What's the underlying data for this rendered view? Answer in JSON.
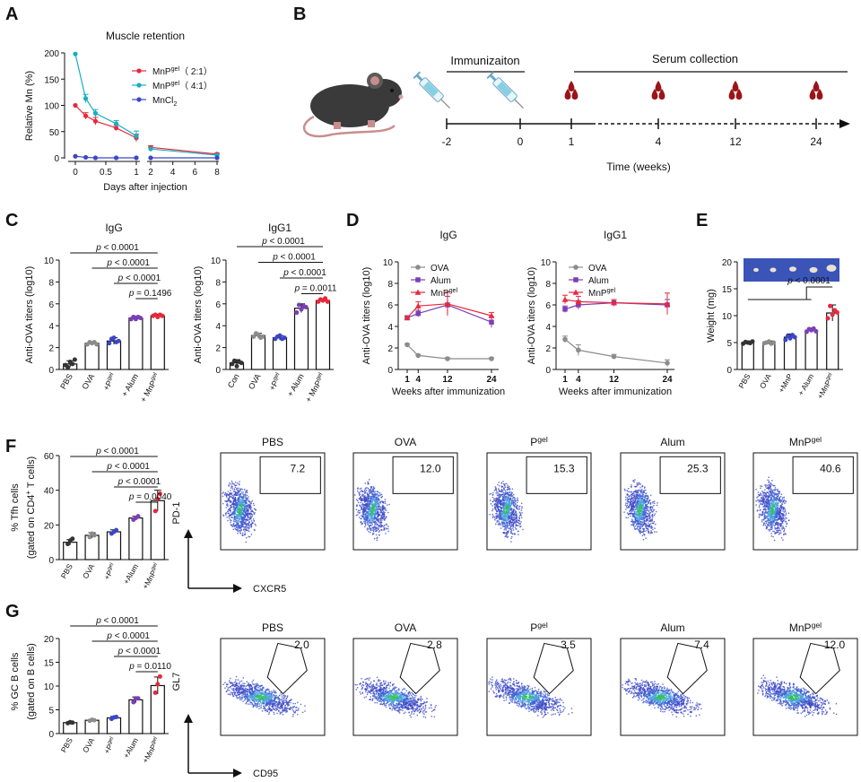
{
  "panel_labels": [
    "A",
    "B",
    "C",
    "D",
    "E",
    "F",
    "G"
  ],
  "colors": {
    "pbs": "#333333",
    "ova": "#8c8c8c",
    "pgel": "#3b47c6",
    "alum": "#7b3fb5",
    "mnp": "#e8283c",
    "cyan": "#17aec3",
    "blue": "#3b47c6",
    "red": "#e8283c",
    "blood": "#9b1418",
    "mouse": "#3a3a3a",
    "tissue_bg": "#3b54b8"
  },
  "panel_a": {
    "title": "Muscle retention",
    "ylabel": "Relative Mn (%)",
    "xlabel": "Days after injection",
    "yticks": [
      "0",
      "50",
      "100",
      "150",
      "200"
    ],
    "xticks_left": [
      "0",
      "0.5",
      "1"
    ],
    "xticks_right": [
      "2",
      "4",
      "6",
      "8"
    ],
    "legend": [
      {
        "main": "MnP",
        "sup": "gel",
        "tail": "（ 2:1）"
      },
      {
        "main": "MnP",
        "sup": "gel",
        "tail": "（ 4:1）"
      },
      {
        "main": "MnCl",
        "sub": "2",
        "tail": ""
      }
    ]
  },
  "panel_b": {
    "immunization_label": "Immunizaiton",
    "serum_label": "Serum collection",
    "ticks": [
      "-2",
      "0",
      "1",
      "4",
      "12",
      "24"
    ],
    "xlabel": "Time (weeks)"
  },
  "panel_c": {
    "left": {
      "title": "IgG",
      "ylabel": "Anti-OVA titers (log10)",
      "yticks": [
        "0",
        "2",
        "4",
        "6",
        "8",
        "10"
      ],
      "categories": [
        {
          "main": "PBS"
        },
        {
          "main": "OVA"
        },
        {
          "main": "+P",
          "sup": "gel"
        },
        {
          "main": "+ Alum"
        },
        {
          "main": "+ MnP",
          "sup": "gel"
        }
      ],
      "pvalues": [
        {
          "p": "p",
          "rel": " < 0.0001"
        },
        {
          "p": "p",
          "rel": " < 0.0001"
        },
        {
          "p": "p",
          "rel": " < 0.0001"
        },
        {
          "p": "p",
          "rel": " = 0.1496"
        }
      ]
    },
    "right": {
      "title": "IgG1",
      "ylabel": "Anti-OVA titers (log10)",
      "yticks": [
        "0",
        "2",
        "4",
        "6",
        "8",
        "10"
      ],
      "categories": [
        {
          "main": "Con"
        },
        {
          "main": "OVA"
        },
        {
          "main": "+P",
          "sup": "gel"
        },
        {
          "main": "+ Alum"
        },
        {
          "main": "+ MnP",
          "sup": "gel"
        }
      ],
      "pvalues": [
        {
          "p": "p",
          "rel": " < 0.0001"
        },
        {
          "p": "p",
          "rel": " < 0.0001"
        },
        {
          "p": "p",
          "rel": " < 0.0001"
        },
        {
          "p": "p",
          "rel": " = 0.0011"
        }
      ]
    }
  },
  "panel_d": {
    "left_title": "IgG",
    "right_title": "IgG1",
    "ylabel": "Anti-OVA titers (log10)",
    "xlabel": "Weeks after immunization",
    "yticks": [
      "0",
      "2",
      "4",
      "6",
      "8",
      "10"
    ],
    "xticks": [
      "1",
      "4",
      "12",
      "24"
    ],
    "legend": [
      {
        "main": "OVA"
      },
      {
        "main": "Alum"
      },
      {
        "main": "MnP",
        "sup": "gel"
      }
    ]
  },
  "panel_e": {
    "ylabel": "Weight (mg)",
    "yticks": [
      "0",
      "5",
      "10",
      "15",
      "20"
    ],
    "categories": [
      {
        "main": "PBS"
      },
      {
        "main": "OVA"
      },
      {
        "main": "+MnP"
      },
      {
        "main": "+ Alum"
      },
      {
        "main": "+MnP",
        "sup": "gel"
      }
    ],
    "pvalue": {
      "p": "p",
      "rel": " < 0.0001"
    }
  },
  "panel_f": {
    "ylabel1": "% Tfh cells",
    "ylabel2_main": "(gated on CD4",
    "ylabel2_sup": "+",
    "ylabel2_tail": " T cells)",
    "yticks": [
      "0",
      "20",
      "40",
      "60"
    ],
    "categories": [
      {
        "main": "PBS"
      },
      {
        "main": "OVA"
      },
      {
        "main": "+P",
        "sup": "gel"
      },
      {
        "main": "+Alum"
      },
      {
        "main": "+MnP",
        "sup": "gel"
      }
    ],
    "pvalues": [
      {
        "p": "p",
        "rel": " < 0.0001"
      },
      {
        "p": "p",
        "rel": " < 0.0001"
      },
      {
        "p": "p",
        "rel": " < 0.0001"
      },
      {
        "p": "p",
        "rel": " = 0.0040"
      }
    ],
    "flow_titles": [
      {
        "main": "PBS"
      },
      {
        "main": "OVA"
      },
      {
        "main": "P",
        "sup": "gel"
      },
      {
        "main": "Alum"
      },
      {
        "main": "MnP",
        "sup": "gel"
      }
    ],
    "gate_values": [
      "7.2",
      "12.0",
      "15.3",
      "25.3",
      "40.6"
    ],
    "y_axis_label": "PD-1",
    "x_axis_label": "CXCR5"
  },
  "panel_g": {
    "ylabel1": "% GC B cells",
    "ylabel2": "(gated on B cells)",
    "yticks": [
      "0",
      "5",
      "10",
      "15",
      "20"
    ],
    "categories": [
      {
        "main": "PBS"
      },
      {
        "main": "OVA"
      },
      {
        "main": "+P",
        "sup": "gel"
      },
      {
        "main": "+Alum"
      },
      {
        "main": "+MnP",
        "sup": "gel"
      }
    ],
    "pvalues": [
      {
        "p": "p",
        "rel": " < 0.0001"
      },
      {
        "p": "p",
        "rel": " < 0.0001"
      },
      {
        "p": "p",
        "rel": " < 0.0001"
      },
      {
        "p": "p",
        "rel": " = 0.0110"
      }
    ],
    "flow_titles": [
      {
        "main": "PBS"
      },
      {
        "main": "OVA"
      },
      {
        "main": "P",
        "sup": "gel"
      },
      {
        "main": "Alum"
      },
      {
        "main": "MnP",
        "sup": "gel"
      }
    ],
    "gate_values": [
      "2.0",
      "2.8",
      "3.5",
      "7.4",
      "12.0"
    ],
    "y_axis_label": "GL7",
    "x_axis_label": "CD95"
  },
  "chart_data": [
    {
      "id": "A",
      "type": "line",
      "title": "Muscle retention",
      "xlabel": "Days after injection",
      "ylabel": "Relative Mn (%)",
      "ylim": [
        0,
        200
      ],
      "series": [
        {
          "name": "MnPgel (2:1)",
          "x": [
            0,
            0.17,
            0.33,
            0.67,
            1,
            2,
            8
          ],
          "y": [
            100,
            80,
            70,
            57,
            38,
            20,
            7
          ],
          "err": [
            0,
            6,
            7,
            5,
            7,
            3,
            2
          ],
          "color": "#e8283c",
          "marker": "circle"
        },
        {
          "name": "MnPgel (4:1)",
          "x": [
            0,
            0.17,
            0.33,
            0.67,
            1,
            2,
            8
          ],
          "y": [
            198,
            113,
            85,
            65,
            42,
            17,
            5
          ],
          "err": [
            0,
            8,
            7,
            6,
            9,
            3,
            2
          ],
          "color": "#17aec3",
          "marker": "circle"
        },
        {
          "name": "MnCl2",
          "x": [
            0,
            0.17,
            0.33,
            0.67,
            1,
            2,
            8
          ],
          "y": [
            3,
            1,
            0,
            0,
            0,
            0,
            0
          ],
          "err": [
            0,
            0,
            0,
            0,
            0,
            0,
            0
          ],
          "color": "#3b47c6",
          "marker": "circle"
        }
      ]
    },
    {
      "id": "C-IgG",
      "type": "bar",
      "categories": [
        "PBS",
        "OVA",
        "+Pgel",
        "+ Alum",
        "+ MnPgel"
      ],
      "values": [
        0.5,
        2.4,
        2.6,
        4.7,
        4.9
      ],
      "err": [
        0.3,
        0.15,
        0.3,
        0.15,
        0.15
      ],
      "ylim": [
        0,
        10
      ],
      "title": "IgG",
      "points": [
        [
          0.4,
          0.2,
          0.7,
          0.5,
          0.9
        ],
        [
          2.3,
          2.5,
          2.4,
          2.5,
          2.3
        ],
        [
          2.4,
          2.8,
          2.9,
          2.5,
          2.6
        ],
        [
          4.6,
          4.8,
          4.6,
          4.8,
          4.7
        ],
        [
          4.9,
          5.0,
          4.8,
          5.0,
          4.9
        ]
      ]
    },
    {
      "id": "C-IgG1",
      "type": "bar",
      "categories": [
        "Con",
        "OVA",
        "+Pgel",
        "+ Alum",
        "+ MnPgel"
      ],
      "values": [
        0.6,
        3.1,
        2.9,
        5.6,
        6.3
      ],
      "err": [
        0.3,
        0.2,
        0.2,
        0.4,
        0.15
      ],
      "ylim": [
        0,
        10
      ],
      "title": "IgG1",
      "points": [
        [
          0.5,
          0.8,
          0.3,
          0.7,
          0.6
        ],
        [
          3.0,
          3.3,
          3.2,
          2.9,
          3.0
        ],
        [
          2.8,
          3.0,
          3.1,
          2.8,
          2.9
        ],
        [
          5.2,
          5.9,
          5.5,
          5.8,
          5.7
        ],
        [
          6.2,
          6.4,
          6.3,
          6.5,
          6.2
        ]
      ]
    },
    {
      "id": "D-IgG",
      "type": "line",
      "title": "IgG",
      "x": [
        1,
        4,
        12,
        24
      ],
      "xlabel": "Weeks after immunization",
      "ylim": [
        0,
        10
      ],
      "series": [
        {
          "name": "OVA",
          "y": [
            2.3,
            1.3,
            1.0,
            1.0
          ],
          "err": [
            0.1,
            0.1,
            0.1,
            0.1
          ],
          "color": "#8c8c8c",
          "marker": "circle"
        },
        {
          "name": "Alum",
          "y": [
            4.8,
            5.2,
            6.0,
            4.4
          ],
          "err": [
            0.15,
            0.3,
            0.8,
            0.5
          ],
          "color": "#7b3fb5",
          "marker": "square"
        },
        {
          "name": "MnPgel",
          "y": [
            4.8,
            5.9,
            6.1,
            5.0
          ],
          "err": [
            0.2,
            0.4,
            1.1,
            0.3
          ],
          "color": "#e8283c",
          "marker": "triangle"
        }
      ]
    },
    {
      "id": "D-IgG1",
      "type": "line",
      "title": "IgG1",
      "x": [
        1,
        4,
        12,
        24
      ],
      "xlabel": "Weeks after immunization",
      "ylim": [
        0,
        10
      ],
      "series": [
        {
          "name": "OVA",
          "y": [
            2.8,
            1.8,
            1.2,
            0.6
          ],
          "err": [
            0.3,
            0.5,
            0.2,
            0.3
          ],
          "color": "#8c8c8c",
          "marker": "circle"
        },
        {
          "name": "Alum",
          "y": [
            5.6,
            6.0,
            6.2,
            6.0
          ],
          "err": [
            0.3,
            0.4,
            0.3,
            0.5
          ],
          "color": "#7b3fb5",
          "marker": "square"
        },
        {
          "name": "MnPgel",
          "y": [
            6.5,
            6.3,
            6.2,
            6.1
          ],
          "err": [
            0.4,
            0.5,
            0.3,
            1.0
          ],
          "color": "#e8283c",
          "marker": "triangle"
        }
      ]
    },
    {
      "id": "E",
      "type": "bar",
      "categories": [
        "PBS",
        "OVA",
        "+MnP",
        "+ Alum",
        "+MnPgel"
      ],
      "values": [
        5,
        5,
        6,
        7.3,
        10.5
      ],
      "err": [
        0.3,
        0.3,
        0.6,
        0.4,
        1.5
      ],
      "ylim": [
        0,
        20
      ],
      "ylabel": "Weight (mg)",
      "points": [
        [
          4.8,
          5.1,
          5.0,
          4.9,
          5.2
        ],
        [
          4.9,
          5.0,
          5.2,
          4.8,
          5.0
        ],
        [
          5.5,
          6.2,
          5.8,
          6.4,
          6.0
        ],
        [
          7.0,
          7.5,
          7.3,
          7.6,
          7.1
        ],
        [
          9.5,
          11.8,
          10.2,
          11.0,
          10.6
        ]
      ]
    },
    {
      "id": "F",
      "type": "bar",
      "categories": [
        "PBS",
        "OVA",
        "+Pgel",
        "+Alum",
        "+MnPgel"
      ],
      "values": [
        10,
        14,
        16,
        24,
        34
      ],
      "err": [
        1.5,
        1.5,
        1.2,
        1.0,
        6
      ],
      "ylim": [
        0,
        60
      ],
      "ylabel": "% Tfh cells",
      "points": [
        [
          9,
          11,
          12
        ],
        [
          13,
          15,
          14
        ],
        [
          15,
          16,
          17
        ],
        [
          23,
          24,
          25
        ],
        [
          28,
          35,
          38
        ]
      ]
    },
    {
      "id": "G",
      "type": "bar",
      "categories": [
        "PBS",
        "OVA",
        "+Pgel",
        "+Alum",
        "+MnPgel"
      ],
      "values": [
        2.3,
        2.8,
        3.3,
        7.1,
        10.1
      ],
      "err": [
        0.2,
        0.2,
        0.3,
        0.6,
        1.8
      ],
      "ylim": [
        0,
        20
      ],
      "ylabel": "% GC B cells",
      "points": [
        [
          2.2,
          2.4,
          2.3
        ],
        [
          2.7,
          2.9,
          2.8
        ],
        [
          3.1,
          3.4,
          3.5
        ],
        [
          6.6,
          7.4,
          7.4
        ],
        [
          8.6,
          10.4,
          12.0
        ]
      ]
    },
    {
      "id": "F-flow",
      "type": "scatter",
      "xlabel": "CXCR5",
      "ylabel": "PD-1",
      "categories": [
        "PBS",
        "OVA",
        "Pgel",
        "Alum",
        "MnPgel"
      ],
      "gate_percent": [
        7.2,
        12.0,
        15.3,
        25.3,
        40.6
      ]
    },
    {
      "id": "G-flow",
      "type": "scatter",
      "xlabel": "CD95",
      "ylabel": "GL7",
      "categories": [
        "PBS",
        "OVA",
        "Pgel",
        "Alum",
        "MnPgel"
      ],
      "gate_percent": [
        2.0,
        2.8,
        3.5,
        7.4,
        12.0
      ]
    }
  ]
}
